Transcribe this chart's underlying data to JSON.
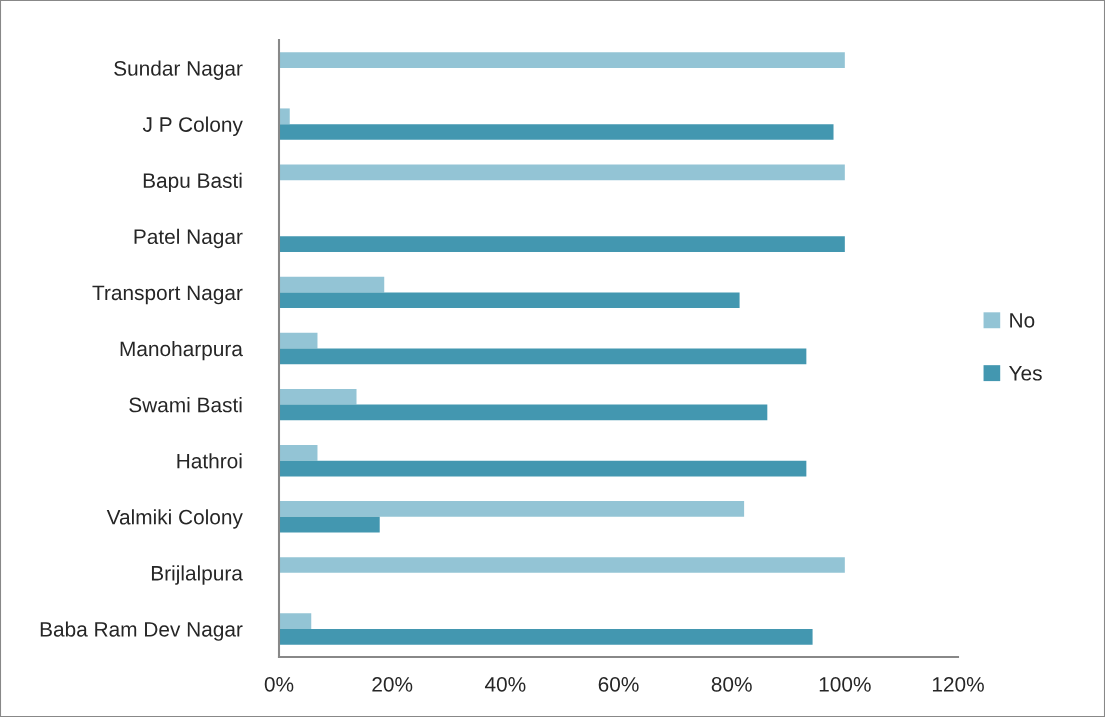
{
  "chart_data": {
    "type": "bar",
    "orientation": "horizontal",
    "categories": [
      "Sundar Nagar",
      "J P Colony",
      "Bapu Basti",
      "Patel Nagar",
      "Transport Nagar",
      "Manoharpura",
      "Swami Basti",
      "Hathroi",
      "Valmiki Colony",
      "Brijlalpura",
      "Baba Ram Dev Nagar"
    ],
    "series": [
      {
        "name": "No",
        "color": "#93c4d5",
        "values": [
          100,
          1.9,
          100,
          null,
          18.6,
          6.8,
          13.7,
          6.8,
          82.2,
          100,
          5.7
        ]
      },
      {
        "name": "Yes",
        "color": "#4397b0",
        "values": [
          null,
          98,
          null,
          100,
          81.4,
          93.2,
          86.3,
          93.2,
          17.8,
          null,
          94.3
        ]
      }
    ],
    "xlim": [
      0,
      120
    ],
    "xticks": [
      {
        "value": 0,
        "label": "0%"
      },
      {
        "value": 20,
        "label": "20%"
      },
      {
        "value": 40,
        "label": "40%"
      },
      {
        "value": 60,
        "label": "60%"
      },
      {
        "value": 80,
        "label": "80%"
      },
      {
        "value": 100,
        "label": "100%"
      },
      {
        "value": 120,
        "label": "120%"
      }
    ],
    "grid": false,
    "legend": "right"
  }
}
